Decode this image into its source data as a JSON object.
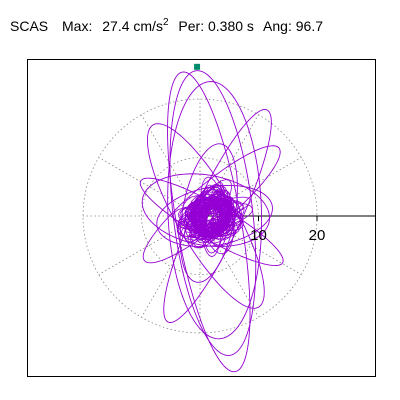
{
  "header": {
    "station": "SCAS",
    "max_label": "Max:",
    "max_value": "27.4",
    "max_unit": "cm/s",
    "max_unit_exp": "2",
    "per_label": "Per:",
    "per_value": "0.380 s",
    "ang_label": "Ang:",
    "ang_value": "96.7"
  },
  "chart_data": {
    "type": "scatter",
    "title": "",
    "polar_grid": {
      "ring_values": [
        10,
        20
      ],
      "spoke_angles_deg": [
        0,
        30,
        60,
        90,
        120,
        150,
        180,
        210,
        240,
        270,
        300,
        330
      ],
      "tick_labels": [
        "10",
        "20"
      ]
    },
    "axis_range": {
      "x": [
        -26,
        26
      ],
      "y": [
        -27,
        27
      ]
    },
    "trace_color": "#9400d3",
    "marker": {
      "x": -0.5,
      "y": 25.5,
      "shape": "square",
      "color": "#008b6b"
    },
    "orbit": {
      "shape": "ellipses",
      "center": [
        2,
        0
      ],
      "inner_loops": [
        {
          "a": 4.0,
          "b": 2.6,
          "angle_deg": 0
        },
        {
          "a": 3.6,
          "b": 2.4,
          "angle_deg": 40
        },
        {
          "a": 4.4,
          "b": 2.2,
          "angle_deg": 95
        },
        {
          "a": 3.4,
          "b": 2.8,
          "angle_deg": 140
        },
        {
          "a": 5.0,
          "b": 1.8,
          "angle_deg": 20
        },
        {
          "a": 4.6,
          "b": 2.0,
          "angle_deg": 70
        }
      ],
      "outer_loops": [
        {
          "cx": 2.2,
          "cy": 0.5,
          "a": 24.5,
          "b": 6.8,
          "angle_deg": 96.7
        },
        {
          "cx": 1.5,
          "cy": -1.0,
          "a": 26.0,
          "b": 5.5,
          "angle_deg": 100
        },
        {
          "cx": 2.5,
          "cy": 1.0,
          "a": 22.0,
          "b": 8.0,
          "angle_deg": 92
        },
        {
          "cx": 3.0,
          "cy": 0.0,
          "a": 20.0,
          "b": 4.0,
          "angle_deg": 65
        },
        {
          "cx": 1.0,
          "cy": 0.0,
          "a": 18.0,
          "b": 5.0,
          "angle_deg": 120
        },
        {
          "cx": 2.0,
          "cy": 2.0,
          "a": 15.0,
          "b": 3.5,
          "angle_deg": 40
        },
        {
          "cx": 2.0,
          "cy": -1.0,
          "a": 14.0,
          "b": 3.0,
          "angle_deg": 150
        },
        {
          "cx": 1.5,
          "cy": 0.5,
          "a": 12.0,
          "b": 4.5,
          "angle_deg": 80
        },
        {
          "cx": 2.5,
          "cy": 0.0,
          "a": 10.0,
          "b": 5.0,
          "angle_deg": 10
        },
        {
          "cx": 1.0,
          "cy": 1.0,
          "a": 11.0,
          "b": 6.0,
          "angle_deg": 170
        }
      ]
    }
  }
}
